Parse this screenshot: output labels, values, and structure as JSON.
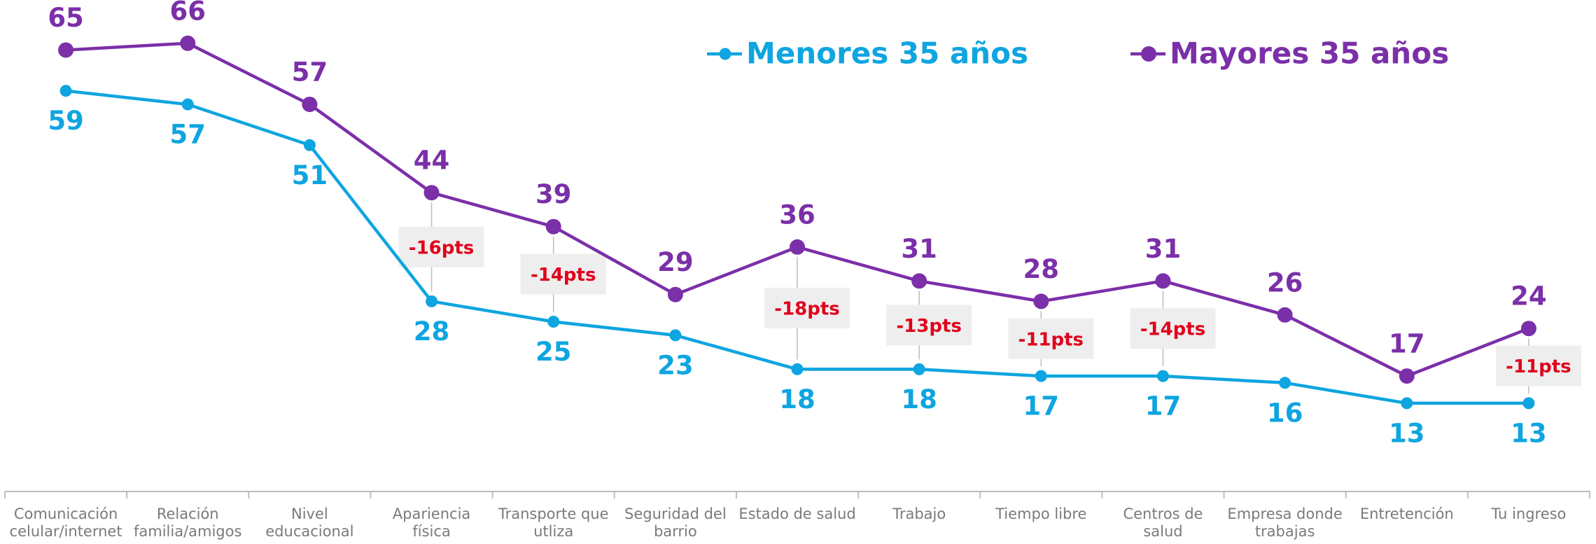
{
  "chart_data": {
    "type": "line",
    "categories": [
      "Comunicación celular/internet",
      "Relación familia/amigos",
      "Nivel educacional",
      "Apariencia física",
      "Transporte que utliza",
      "Seguridad del barrio",
      "Estado de salud",
      "Trabajo",
      "Tiempo libre",
      "Centros de salud",
      "Empresa donde trabajas",
      "Entretención",
      "Tu ingreso"
    ],
    "series": [
      {
        "name": "Menores 35 años",
        "color": "#0ea5e0",
        "values": [
          59,
          57,
          51,
          28,
          25,
          23,
          18,
          18,
          17,
          17,
          16,
          13,
          13
        ]
      },
      {
        "name": "Mayores 35 años",
        "color": "#7b2fa8",
        "values": [
          65,
          66,
          57,
          44,
          39,
          29,
          36,
          31,
          28,
          31,
          26,
          17,
          24
        ]
      }
    ],
    "gap_labels": [
      null,
      null,
      null,
      "-16pts",
      "-14pts",
      null,
      "-18pts",
      "-13pts",
      "-11pts",
      "-14pts",
      null,
      null,
      "-11pts"
    ],
    "gap_label_color": "#e0001b",
    "ylim": [
      0,
      70
    ],
    "legend": "top"
  }
}
